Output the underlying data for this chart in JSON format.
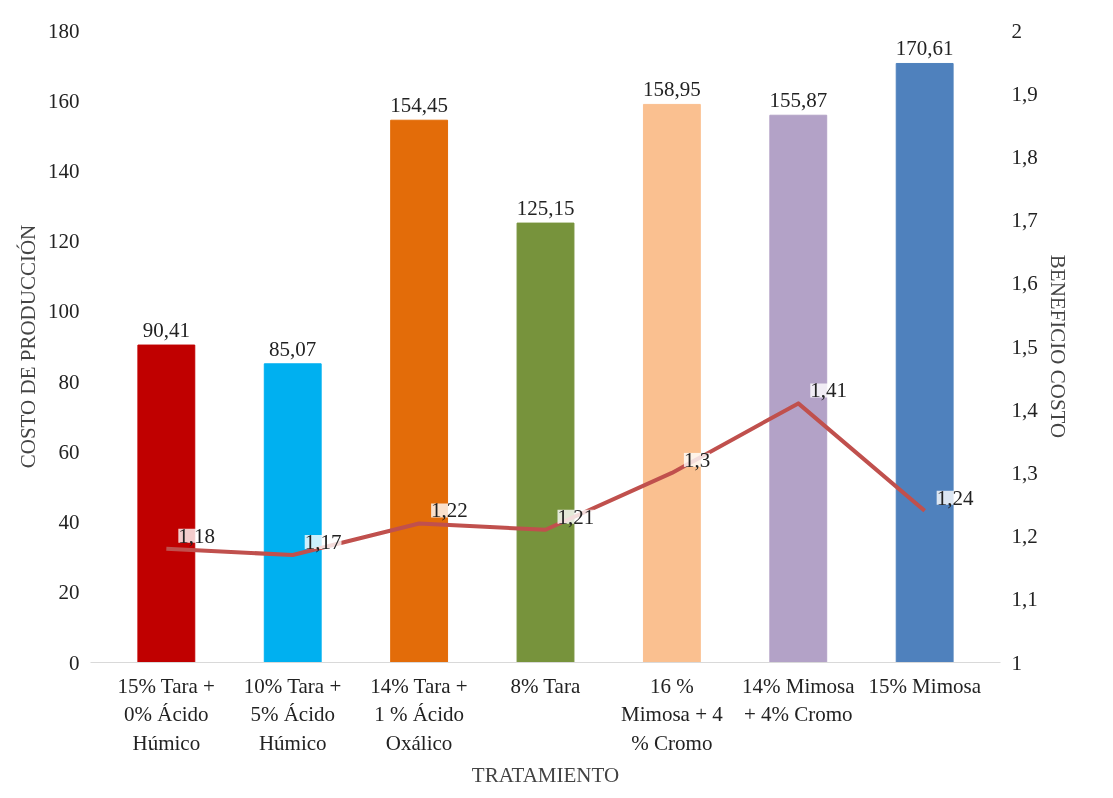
{
  "chart_data": {
    "type": "bar",
    "xlabel": "TRATAMIENTO",
    "ylabel": "COSTO DE PRODUCCIÓN",
    "y2label": "BENEFICIO COSTO",
    "categories": [
      "15% Tara + 0% Ácido Húmico",
      "10% Tara + 5% Ácido Húmico",
      "14% Tara + 1 % Ácido Oxálico",
      "8% Tara",
      "16 % Mimosa + 4 % Cromo",
      "14% Mimosa + 4% Cromo",
      "15% Mimosa"
    ],
    "series": [
      {
        "values": [
          90.41,
          85.07,
          154.45,
          125.15,
          158.95,
          155.87,
          170.61
        ],
        "colors": [
          "#c00000",
          "#00b0f0",
          "#e36c09",
          "#77933c",
          "#fac090",
          "#b3a2c7",
          "#4f81bd"
        ],
        "value_labels": [
          "90,41",
          "85,07",
          "154,45",
          "125,15",
          "158,95",
          "155,87",
          "170,61"
        ]
      },
      {
        "type": "line",
        "axis": "y2",
        "color": "#c0504d",
        "values": [
          1.18,
          1.17,
          1.22,
          1.21,
          1.3,
          1.41,
          1.24
        ],
        "value_labels": [
          "1,18",
          "1,17",
          "1,22",
          "1,21",
          "1,3",
          "1,41",
          "1,24"
        ]
      }
    ],
    "ylim": [
      0,
      180
    ],
    "yticks": [
      0,
      20,
      40,
      60,
      80,
      100,
      120,
      140,
      160,
      180
    ],
    "y2lim": [
      1,
      2
    ],
    "y2ticks": [
      1,
      {
        "value": 1.1,
        "label": "1,1"
      },
      {
        "value": 1.2,
        "label": "1,2"
      },
      {
        "value": 1.3,
        "label": "1,3"
      },
      {
        "value": 1.4,
        "label": "1,4"
      },
      {
        "value": 1.5,
        "label": "1,5"
      },
      {
        "value": 1.6,
        "label": "1,6"
      },
      {
        "value": 1.7,
        "label": "1,7"
      },
      {
        "value": 1.8,
        "label": "1,8"
      },
      {
        "value": 1.9,
        "label": "1,9"
      },
      2
    ],
    "grid": false
  }
}
